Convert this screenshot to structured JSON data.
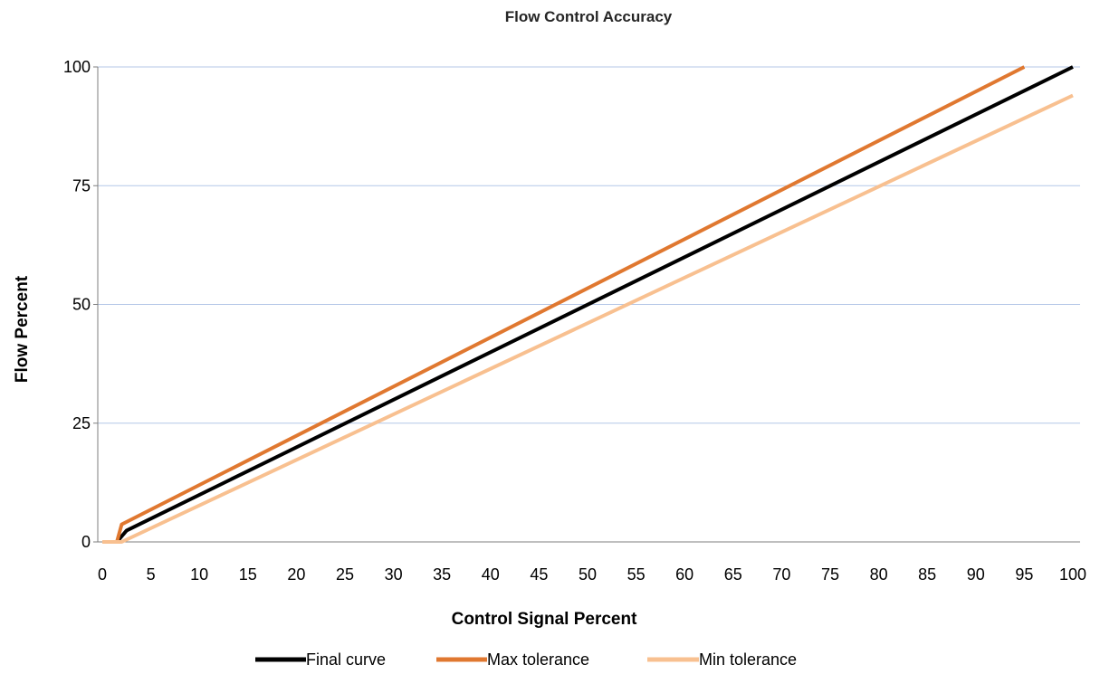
{
  "chart_data": {
    "type": "line",
    "title": "Flow Control Accuracy",
    "xlabel": "Control Signal Percent",
    "ylabel": "Flow Percent",
    "xlim": [
      0,
      100
    ],
    "ylim": [
      0,
      100
    ],
    "x_ticks": [
      "0",
      "5",
      "10",
      "15",
      "20",
      "25",
      "30",
      "35",
      "40",
      "45",
      "50",
      "55",
      "60",
      "65",
      "70",
      "75",
      "80",
      "85",
      "90",
      "95",
      "100"
    ],
    "y_ticks": [
      "0",
      "25",
      "50",
      "75",
      "100"
    ],
    "grid": "horizontal",
    "legend_position": "bottom",
    "series": [
      {
        "name": "Final curve",
        "color": "#000000",
        "points": [
          [
            0,
            0
          ],
          [
            1.5,
            0
          ],
          [
            2.5,
            2.4
          ],
          [
            100,
            100
          ]
        ]
      },
      {
        "name": "Max tolerance",
        "color": "#E07830",
        "points": [
          [
            0,
            0
          ],
          [
            1.5,
            0
          ],
          [
            2,
            3.7
          ],
          [
            95,
            100
          ]
        ]
      },
      {
        "name": "Min tolerance",
        "color": "#F8C090",
        "points": [
          [
            0,
            0
          ],
          [
            2,
            0
          ],
          [
            100,
            94
          ]
        ]
      }
    ]
  }
}
